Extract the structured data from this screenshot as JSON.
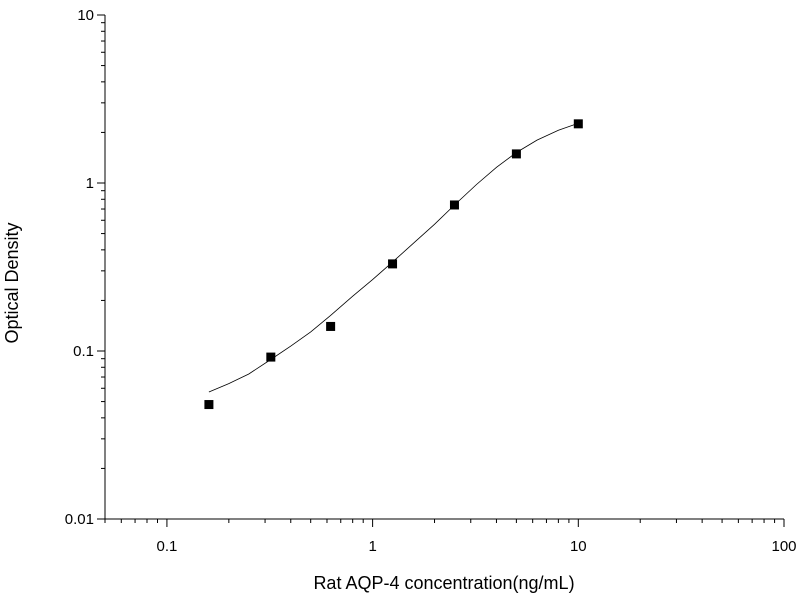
{
  "chart_data": {
    "type": "scatter",
    "title": "",
    "xlabel": "Rat AQP-4 concentration(ng/mL)",
    "ylabel": "Optical Density",
    "xscale": "log",
    "yscale": "log",
    "xlim": [
      0.05,
      100
    ],
    "ylim": [
      0.01,
      10
    ],
    "x_ticks": [
      {
        "value": 0.1,
        "label": "0.1"
      },
      {
        "value": 1,
        "label": "1"
      },
      {
        "value": 10,
        "label": "10"
      },
      {
        "value": 100,
        "label": "100"
      }
    ],
    "y_ticks": [
      {
        "value": 0.01,
        "label": "0.01"
      },
      {
        "value": 0.1,
        "label": "0.1"
      },
      {
        "value": 1,
        "label": "1"
      },
      {
        "value": 10,
        "label": "10"
      }
    ],
    "grid": false,
    "legend": "none",
    "series": [
      {
        "marker": "square",
        "color": "#000000",
        "x": [
          0.16,
          0.32,
          0.625,
          1.25,
          2.5,
          5,
          10
        ],
        "y": [
          0.048,
          0.092,
          0.14,
          0.33,
          0.74,
          1.49,
          2.25
        ]
      }
    ],
    "fit_curve": {
      "color": "#000000",
      "x": [
        0.16,
        0.2,
        0.25,
        0.32,
        0.4,
        0.5,
        0.625,
        0.8,
        1.0,
        1.25,
        1.6,
        2.0,
        2.5,
        3.2,
        4.0,
        5.0,
        6.3,
        8.0,
        10
      ],
      "y": [
        0.057,
        0.064,
        0.073,
        0.089,
        0.107,
        0.13,
        0.163,
        0.212,
        0.266,
        0.338,
        0.444,
        0.568,
        0.74,
        0.98,
        1.24,
        1.52,
        1.8,
        2.06,
        2.27
      ]
    }
  }
}
